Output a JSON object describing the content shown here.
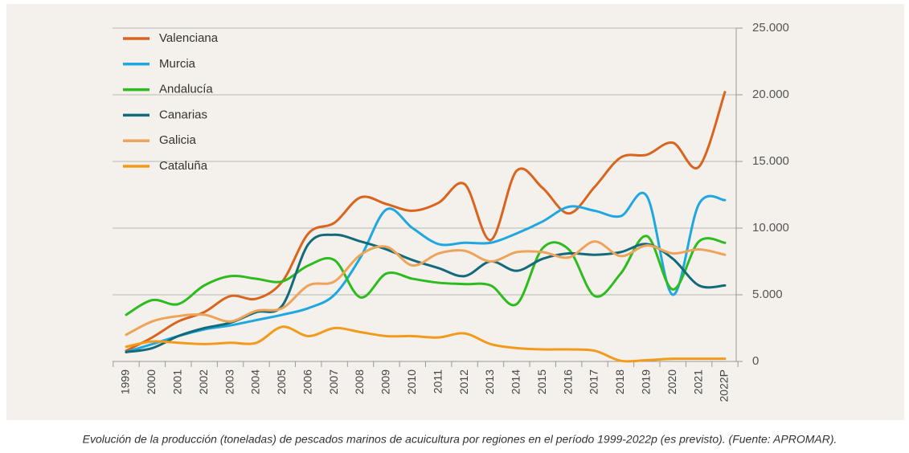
{
  "chart_data": {
    "type": "line",
    "caption": "Evolución de la producción (toneladas) de pescados marinos de acuicultura por regiones en el período 1999-2022p (es previsto). (Fuente: APROMAR).",
    "categories": [
      "1999",
      "2000",
      "2001",
      "2002",
      "2003",
      "2004",
      "2005",
      "2006",
      "2007",
      "2008",
      "2009",
      "2010",
      "2011",
      "2012",
      "2013",
      "2014",
      "2015",
      "2016",
      "2017",
      "2018",
      "2019",
      "2020",
      "2021",
      "2022P"
    ],
    "series": [
      {
        "name": "Valenciana",
        "color": "#d9641e",
        "values": [
          800,
          1800,
          3000,
          3700,
          4900,
          4700,
          6000,
          9600,
          10400,
          12300,
          11800,
          11300,
          11900,
          13300,
          9100,
          14300,
          13000,
          11100,
          13100,
          15300,
          15500,
          16400,
          14600,
          20200
        ]
      },
      {
        "name": "Murcia",
        "color": "#1ea7e0",
        "values": [
          700,
          1300,
          1900,
          2400,
          2700,
          3100,
          3500,
          4000,
          5000,
          7800,
          11400,
          10000,
          8800,
          8900,
          8900,
          9600,
          10500,
          11600,
          11300,
          10900,
          12400,
          5000,
          11800,
          12100
        ]
      },
      {
        "name": "Andalucía",
        "color": "#2dbb1f",
        "values": [
          3500,
          4600,
          4300,
          5700,
          6400,
          6200,
          6000,
          7200,
          7600,
          4800,
          6600,
          6200,
          5900,
          5800,
          5700,
          4300,
          8500,
          8400,
          4900,
          6600,
          9400,
          5400,
          9000,
          8900
        ]
      },
      {
        "name": "Canarias",
        "color": "#136a7a",
        "values": [
          700,
          1000,
          1900,
          2500,
          2900,
          3700,
          4200,
          8800,
          9500,
          9000,
          8400,
          7600,
          7000,
          6400,
          7500,
          6800,
          7700,
          8100,
          8000,
          8200,
          8800,
          7700,
          5700,
          5700
        ]
      },
      {
        "name": "Galicia",
        "color": "#eda35a",
        "values": [
          2000,
          3000,
          3400,
          3500,
          3000,
          3800,
          4000,
          5700,
          6000,
          8000,
          8600,
          7200,
          8100,
          8300,
          7500,
          8200,
          8200,
          7800,
          9000,
          7900,
          8700,
          8100,
          8400,
          8000
        ]
      },
      {
        "name": "Cataluña",
        "color": "#f39a1a",
        "values": [
          1100,
          1500,
          1400,
          1300,
          1400,
          1400,
          2600,
          1900,
          2500,
          2200,
          1900,
          1900,
          1800,
          2100,
          1300,
          1000,
          900,
          900,
          800,
          50,
          100,
          200,
          200,
          200
        ]
      }
    ],
    "ylim": [
      0,
      25000
    ],
    "yticks": [
      0,
      {
        "value": 5000,
        "label": "5.000"
      },
      {
        "value": 10000,
        "label": "10.000"
      },
      {
        "value": 15000,
        "label": "15.000"
      },
      {
        "value": 20000,
        "label": "20.000"
      },
      {
        "value": 25000,
        "label": "25.000"
      }
    ],
    "grid": true,
    "legend": "top-left"
  }
}
